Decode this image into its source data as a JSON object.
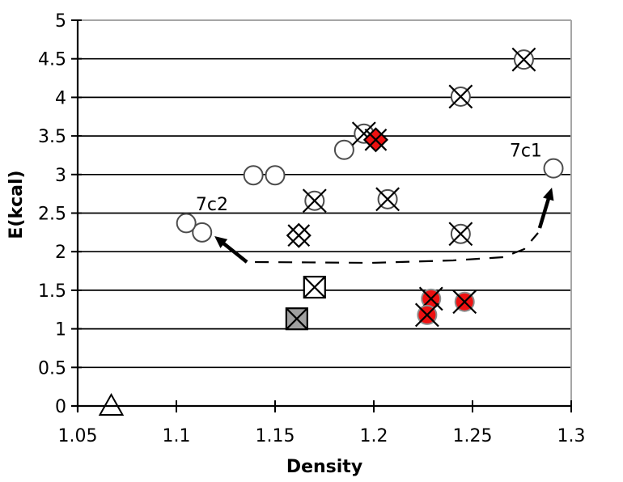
{
  "chart_data": {
    "type": "scatter",
    "title": "",
    "xlabel": "Density",
    "ylabel": "E(kcal)",
    "xlim": [
      1.05,
      1.3
    ],
    "ylim": [
      0,
      5
    ],
    "x_ticks": [
      1.05,
      1.1,
      1.15,
      1.2,
      1.25,
      1.3
    ],
    "x_tick_labels": [
      "1.05",
      "1.1",
      "1.15",
      "1.2",
      "1.25",
      "1.3"
    ],
    "y_ticks": [
      0,
      0.5,
      1,
      1.5,
      2,
      2.5,
      3,
      3.5,
      4,
      4.5,
      5
    ],
    "y_tick_labels": [
      "0",
      "0.5",
      "1",
      "1.5",
      "2",
      "2.5",
      "3",
      "3.5",
      "4",
      "4.5",
      "5"
    ],
    "grid": "horizontal",
    "legend": "none",
    "colors": {
      "red_fill": "#ee1111",
      "gray_fill": "#a0a0a0",
      "circle_stroke": "#4d4d4d",
      "red_circle_stroke": "#8c8c8c",
      "black": "#000000",
      "border_gray": "#a6a6a6"
    },
    "series": [
      {
        "name": "open-circle",
        "marker": "circle",
        "fill": "#ffffff",
        "stroke": "#4d4d4d",
        "cross": false,
        "points": [
          [
            1.113,
            2.25
          ],
          [
            1.105,
            2.37
          ],
          [
            1.139,
            2.99
          ],
          [
            1.15,
            2.99
          ],
          [
            1.185,
            3.32
          ],
          [
            1.291,
            3.08
          ]
        ]
      },
      {
        "name": "crossed-circle",
        "marker": "circle",
        "fill": "#ffffff",
        "stroke": "#4d4d4d",
        "cross": true,
        "points": [
          [
            1.17,
            2.66
          ],
          [
            1.207,
            2.68
          ],
          [
            1.244,
            2.23
          ],
          [
            1.195,
            3.53
          ],
          [
            1.244,
            4.01
          ],
          [
            1.276,
            4.49
          ]
        ]
      },
      {
        "name": "crossed-diamond",
        "marker": "diamond",
        "fill": "#ffffff",
        "stroke": "#000000",
        "cross": true,
        "points": [
          [
            1.162,
            2.21
          ]
        ]
      },
      {
        "name": "crossed-square",
        "marker": "square",
        "fill": "#ffffff",
        "stroke": "#000000",
        "cross": true,
        "points": [
          [
            1.17,
            1.54
          ]
        ]
      },
      {
        "name": "gray-crossed-square",
        "marker": "square",
        "fill": "#a0a0a0",
        "stroke": "#000000",
        "cross": true,
        "points": [
          [
            1.161,
            1.13
          ]
        ]
      },
      {
        "name": "open-triangle",
        "marker": "triangle",
        "fill": "#ffffff",
        "stroke": "#000000",
        "cross": false,
        "points": [
          [
            1.067,
            0.0
          ]
        ]
      },
      {
        "name": "red-crossed-circle",
        "marker": "circle",
        "fill": "#ee1111",
        "stroke": "#8c8c8c",
        "cross": true,
        "points": [
          [
            1.229,
            1.39
          ],
          [
            1.227,
            1.18
          ],
          [
            1.246,
            1.35
          ]
        ]
      },
      {
        "name": "red-crossed-diamond",
        "marker": "diamond",
        "fill": "#ee1111",
        "stroke": "#000000",
        "cross": true,
        "points": [
          [
            1.201,
            3.45
          ]
        ]
      }
    ],
    "annotations": {
      "labels": [
        {
          "text": "7c2",
          "x": 1.118,
          "y": 2.62
        },
        {
          "text": "7c1",
          "x": 1.277,
          "y": 3.32
        }
      ],
      "arrows": [
        {
          "name": "arrow-to-7c2",
          "from": [
            1.1357,
            1.866
          ],
          "to": [
            1.1193,
            2.201
          ]
        },
        {
          "name": "arrow-to-7c1",
          "from": [
            1.284,
            2.306
          ],
          "to": [
            1.2902,
            2.83
          ]
        }
      ],
      "dashed_path": [
        [
          1.1398,
          1.866
        ],
        [
          1.1992,
          1.855
        ],
        [
          1.2402,
          1.887
        ],
        [
          1.2656,
          1.929
        ],
        [
          1.2762,
          2.034
        ],
        [
          1.2832,
          2.243
        ]
      ]
    }
  }
}
